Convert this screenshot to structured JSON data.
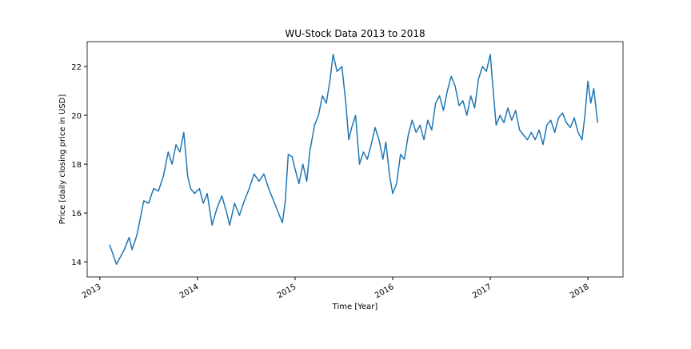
{
  "chart_data": {
    "type": "line",
    "title": "WU-Stock Data 2013 to 2018",
    "xlabel": "Time [Year]",
    "ylabel": "Price [daily closing price in USD]",
    "x": [
      2013.1,
      2013.17,
      2013.25,
      2013.3,
      2013.33,
      2013.38,
      2013.45,
      2013.5,
      2013.55,
      2013.6,
      2013.65,
      2013.7,
      2013.74,
      2013.78,
      2013.82,
      2013.86,
      2013.9,
      2013.93,
      2013.97,
      2014.02,
      2014.06,
      2014.1,
      2014.15,
      2014.2,
      2014.25,
      2014.3,
      2014.33,
      2014.38,
      2014.43,
      2014.48,
      2014.53,
      2014.58,
      2014.63,
      2014.68,
      2014.73,
      2014.78,
      2014.83,
      2014.87,
      2014.9,
      2014.93,
      2014.97,
      2015.0,
      2015.04,
      2015.08,
      2015.12,
      2015.15,
      2015.2,
      2015.24,
      2015.28,
      2015.32,
      2015.36,
      2015.39,
      2015.43,
      2015.48,
      2015.52,
      2015.55,
      2015.58,
      2015.62,
      2015.66,
      2015.7,
      2015.74,
      2015.78,
      2015.82,
      2015.86,
      2015.9,
      2015.93,
      2015.97,
      2016.0,
      2016.04,
      2016.08,
      2016.12,
      2016.16,
      2016.2,
      2016.24,
      2016.28,
      2016.32,
      2016.36,
      2016.4,
      2016.44,
      2016.48,
      2016.52,
      2016.56,
      2016.6,
      2016.64,
      2016.68,
      2016.72,
      2016.76,
      2016.8,
      2016.84,
      2016.88,
      2016.92,
      2016.96,
      2017.0,
      2017.03,
      2017.06,
      2017.1,
      2017.14,
      2017.18,
      2017.22,
      2017.26,
      2017.3,
      2017.34,
      2017.38,
      2017.42,
      2017.46,
      2017.5,
      2017.54,
      2017.58,
      2017.62,
      2017.66,
      2017.7,
      2017.74,
      2017.78,
      2017.82,
      2017.86,
      2017.9,
      2017.94,
      2017.97,
      2018.0,
      2018.03,
      2018.06,
      2018.1
    ],
    "series": [
      {
        "name": "WU",
        "color": "#1f77b4",
        "values": [
          14.7,
          13.9,
          14.5,
          15.0,
          14.5,
          15.1,
          16.5,
          16.4,
          17.0,
          16.9,
          17.5,
          18.5,
          18.0,
          18.8,
          18.5,
          19.3,
          17.5,
          17.0,
          16.8,
          17.0,
          16.4,
          16.8,
          15.5,
          16.2,
          16.7,
          16.0,
          15.5,
          16.4,
          15.9,
          16.5,
          17.0,
          17.6,
          17.3,
          17.6,
          17.0,
          16.5,
          16.0,
          15.6,
          16.5,
          18.4,
          18.3,
          17.8,
          17.2,
          18.0,
          17.3,
          18.5,
          19.6,
          20.0,
          20.8,
          20.5,
          21.5,
          22.5,
          21.8,
          22.0,
          20.5,
          19.0,
          19.5,
          20.0,
          18.0,
          18.5,
          18.2,
          18.8,
          19.5,
          19.0,
          18.2,
          18.9,
          17.5,
          16.8,
          17.2,
          18.4,
          18.2,
          19.2,
          19.8,
          19.3,
          19.6,
          19.0,
          19.8,
          19.4,
          20.5,
          20.8,
          20.2,
          21.0,
          21.6,
          21.2,
          20.4,
          20.6,
          20.0,
          20.8,
          20.3,
          21.5,
          22.0,
          21.8,
          22.5,
          21.0,
          19.6,
          20.0,
          19.7,
          20.3,
          19.8,
          20.2,
          19.4,
          19.2,
          19.0,
          19.3,
          19.0,
          19.4,
          18.8,
          19.6,
          19.8,
          19.3,
          19.9,
          20.1,
          19.7,
          19.5,
          19.9,
          19.3,
          19.0,
          20.0,
          21.4,
          20.5,
          21.1,
          19.7
        ]
      }
    ],
    "xlim": [
      2012.87,
      2018.36
    ],
    "xticks": [
      2013,
      2014,
      2015,
      2016,
      2017,
      2018
    ],
    "ylim": [
      13.38,
      23.02
    ],
    "yticks": [
      14,
      16,
      18,
      20,
      22
    ],
    "grid": false
  }
}
